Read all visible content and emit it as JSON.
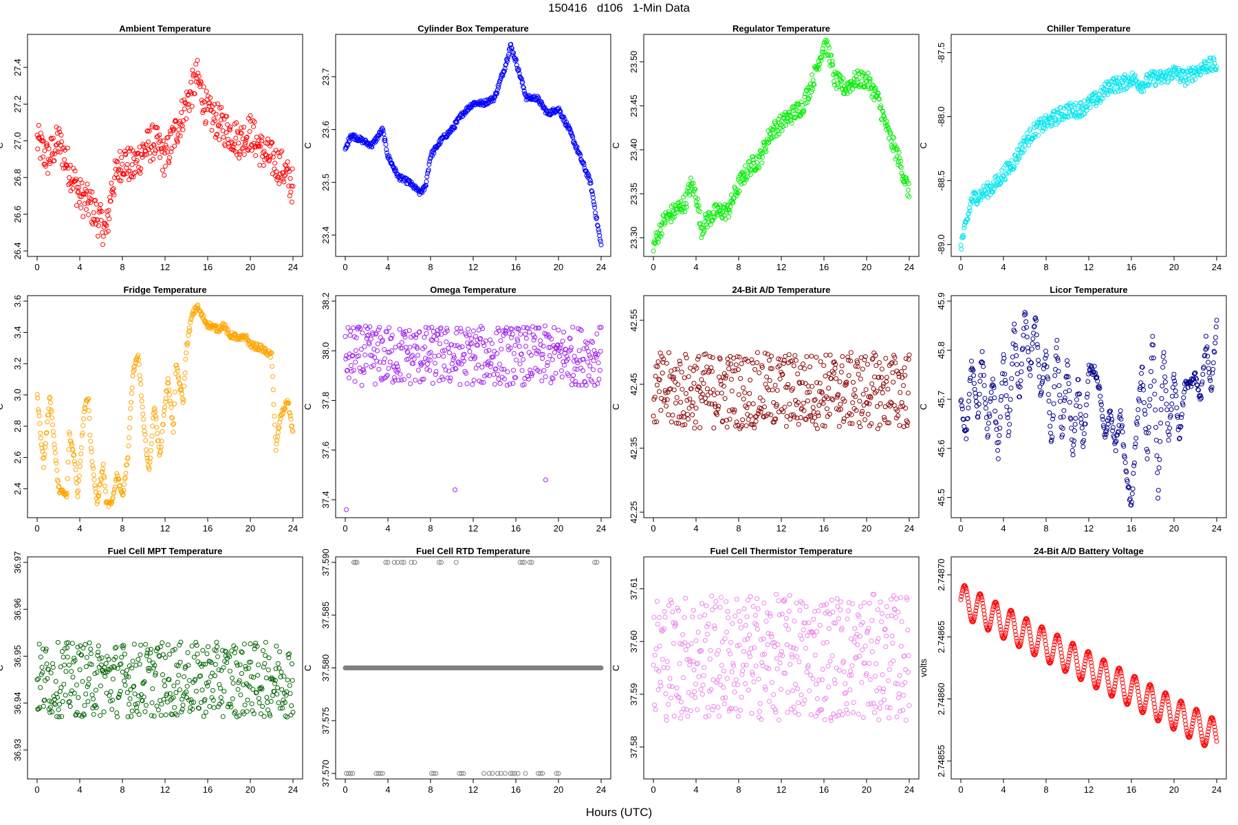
{
  "main_title": "150416   d106   1-Min Data",
  "x_axis_title": "Hours (UTC)",
  "chart_data": [
    {
      "type": "scatter",
      "title": "Ambient Temperature",
      "ylabel": "C",
      "color": "#ff0000",
      "xlim": [
        0,
        24
      ],
      "ylim": [
        26.4,
        27.55
      ],
      "xticks": [
        0,
        4,
        8,
        12,
        16,
        20,
        24
      ],
      "yticks": [
        "26.4",
        "26.6",
        "26.8",
        "27.0",
        "27.2",
        "27.4"
      ],
      "series_profile": {
        "x": [
          0,
          1,
          2,
          3,
          4,
          5,
          6,
          6.5,
          7,
          8,
          9,
          10,
          11,
          12,
          13,
          14,
          15,
          16,
          17,
          18,
          19,
          20,
          21,
          22,
          23,
          24
        ],
        "y": [
          27.0,
          26.9,
          27.0,
          26.85,
          26.7,
          26.65,
          26.55,
          26.5,
          26.75,
          26.9,
          26.85,
          26.95,
          27.0,
          26.9,
          27.05,
          27.2,
          27.35,
          27.15,
          27.1,
          27.05,
          27.0,
          27.05,
          26.95,
          26.9,
          26.85,
          26.75
        ]
      },
      "spread": 0.1
    },
    {
      "type": "scatter",
      "title": "Cylinder Box Temperature",
      "ylabel": "C",
      "color": "#0000ff",
      "xlim": [
        0,
        24
      ],
      "ylim": [
        23.37,
        23.77
      ],
      "xticks": [
        0,
        4,
        8,
        12,
        16,
        20,
        24
      ],
      "yticks": [
        "23.4",
        "23.5",
        "23.6",
        "23.7"
      ],
      "series_profile": {
        "x": [
          0,
          0.5,
          1.5,
          2.5,
          3.5,
          4,
          5,
          6,
          7,
          7.5,
          8,
          9,
          10,
          11,
          12,
          13,
          14,
          15,
          15.5,
          16,
          17,
          18,
          19,
          20,
          21,
          22,
          23,
          24
        ],
        "y": [
          23.56,
          23.59,
          23.58,
          23.57,
          23.6,
          23.55,
          23.51,
          23.5,
          23.48,
          23.49,
          23.55,
          23.58,
          23.6,
          23.63,
          23.65,
          23.65,
          23.66,
          23.72,
          23.76,
          23.73,
          23.66,
          23.66,
          23.63,
          23.64,
          23.6,
          23.55,
          23.5,
          23.38
        ]
      },
      "spread": 0.005
    },
    {
      "type": "scatter",
      "title": "Regulator Temperature",
      "ylabel": "C",
      "color": "#00ee00",
      "xlim": [
        0,
        24
      ],
      "ylim": [
        23.285,
        23.525
      ],
      "xticks": [
        0,
        4,
        8,
        12,
        16,
        20,
        24
      ],
      "yticks": [
        "23.30",
        "23.35",
        "23.40",
        "23.45",
        "23.50"
      ],
      "series_profile": {
        "x": [
          0,
          1,
          2,
          3,
          3.5,
          4,
          4.5,
          5,
          6,
          7,
          8,
          9,
          10,
          11,
          12,
          13,
          14,
          15,
          16,
          16.5,
          17,
          18,
          19,
          20,
          21,
          22,
          23,
          24
        ],
        "y": [
          23.29,
          23.32,
          23.33,
          23.34,
          23.36,
          23.35,
          23.31,
          23.32,
          23.33,
          23.33,
          23.36,
          23.38,
          23.39,
          23.42,
          23.43,
          23.44,
          23.45,
          23.48,
          23.52,
          23.51,
          23.48,
          23.47,
          23.48,
          23.48,
          23.46,
          23.42,
          23.39,
          23.35
        ]
      },
      "spread": 0.01
    },
    {
      "type": "scatter",
      "title": "Chiller Temperature",
      "ylabel": "C",
      "color": "#00e5ee",
      "xlim": [
        0,
        24
      ],
      "ylim": [
        -89.05,
        -87.4
      ],
      "xticks": [
        0,
        4,
        8,
        12,
        16,
        20,
        24
      ],
      "yticks": [
        "-89.0",
        "-88.5",
        "-88.0",
        "-87.5"
      ],
      "series_profile": {
        "x": [
          0,
          0.5,
          1,
          2,
          3,
          4,
          5,
          6,
          7,
          8,
          9,
          10,
          11,
          12,
          13,
          14,
          15,
          16,
          17,
          18,
          19,
          20,
          21,
          22,
          23,
          24
        ],
        "y": [
          -89.0,
          -88.85,
          -88.65,
          -88.6,
          -88.55,
          -88.45,
          -88.35,
          -88.2,
          -88.1,
          -88.05,
          -88.0,
          -87.95,
          -87.95,
          -87.9,
          -87.85,
          -87.75,
          -87.75,
          -87.7,
          -87.75,
          -87.7,
          -87.7,
          -87.65,
          -87.7,
          -87.65,
          -87.6,
          -87.6
        ]
      },
      "spread": 0.06
    },
    {
      "type": "scatter",
      "title": "Fridge Temperature",
      "ylabel": "C",
      "color": "#ffa500",
      "xlim": [
        0,
        24
      ],
      "ylim": [
        2.25,
        3.6
      ],
      "xticks": [
        0,
        4,
        8,
        12,
        16,
        20,
        24
      ],
      "yticks": [
        "2.4",
        "2.6",
        "2.8",
        "3.0",
        "3.2",
        "3.4",
        "3.6"
      ],
      "series_profile": {
        "x": [
          0,
          0.6,
          1.2,
          2,
          2.8,
          3,
          3.5,
          3.8,
          4.4,
          4.8,
          5,
          5.6,
          6.2,
          6.5,
          7,
          7.5,
          8,
          8.5,
          9,
          9.5,
          10,
          10.5,
          11,
          11.5,
          12,
          12.3,
          12.8,
          13,
          13.7,
          14,
          14.5,
          15,
          15.5,
          16,
          17,
          17.5,
          18,
          18.5,
          19,
          19.5,
          20,
          21,
          22,
          22.4,
          22.8,
          23.5,
          24
        ],
        "y": [
          3.0,
          2.55,
          3.0,
          2.4,
          2.35,
          2.75,
          2.6,
          2.35,
          2.9,
          3.0,
          2.7,
          2.3,
          2.55,
          2.3,
          2.3,
          2.5,
          2.35,
          2.6,
          3.15,
          3.25,
          2.8,
          2.5,
          2.95,
          2.6,
          2.95,
          3.1,
          2.75,
          3.2,
          2.95,
          3.3,
          3.5,
          3.57,
          3.5,
          3.45,
          3.42,
          3.45,
          3.38,
          3.38,
          3.35,
          3.38,
          3.32,
          3.3,
          3.25,
          2.65,
          2.85,
          2.97,
          2.75
        ]
      },
      "spread": 0.02
    },
    {
      "type": "scatter",
      "title": "Omega Temperature",
      "ylabel": "C",
      "color": "#a020f0",
      "xlim": [
        0,
        24
      ],
      "ylim": [
        37.35,
        38.2
      ],
      "xticks": [
        0,
        4,
        8,
        12,
        16,
        20,
        24
      ],
      "yticks": [
        "37.4",
        "37.6",
        "37.8",
        "38.0",
        "38.2"
      ],
      "series_profile": {
        "x": [
          0,
          24
        ],
        "y": [
          37.98,
          37.98
        ]
      },
      "spread": 0.12,
      "outliers": [
        [
          0.1,
          37.36
        ],
        [
          10.3,
          37.44
        ],
        [
          18.8,
          37.48
        ]
      ]
    },
    {
      "type": "scatter",
      "title": "24-Bit A/D Temperature",
      "ylabel": "C",
      "color": "#8b0000",
      "xlim": [
        0,
        24
      ],
      "ylim": [
        42.25,
        42.58
      ],
      "xticks": [
        0,
        4,
        8,
        12,
        16,
        20,
        24
      ],
      "yticks": [
        "42.25",
        "42.35",
        "42.45",
        "42.55"
      ],
      "series_profile": {
        "x": [
          0,
          24
        ],
        "y": [
          42.44,
          42.44
        ]
      },
      "spread": 0.06
    },
    {
      "type": "scatter",
      "title": "Licor Temperature",
      "ylabel": "C",
      "color": "#00008b",
      "xlim": [
        0,
        24
      ],
      "ylim": [
        45.47,
        45.9
      ],
      "xticks": [
        0,
        4,
        8,
        12,
        16,
        20,
        24
      ],
      "yticks": [
        "45.5",
        "45.6",
        "45.7",
        "45.8",
        "45.9"
      ],
      "series_profile": {
        "x": [
          0,
          0.5,
          1,
          1.6,
          2,
          2.5,
          3,
          3.5,
          4,
          4.5,
          5,
          5.5,
          6,
          6.5,
          7,
          7.5,
          8,
          8.5,
          9,
          9.5,
          10,
          10.5,
          11,
          11.5,
          12,
          12.5,
          13,
          13.5,
          14,
          14.5,
          15,
          15.5,
          16,
          16.5,
          17,
          17.5,
          18,
          18.5,
          19,
          19.5,
          20,
          20.5,
          21,
          21.5,
          22,
          22.5,
          23,
          23.5,
          24
        ],
        "y": [
          45.7,
          45.62,
          45.78,
          45.66,
          45.8,
          45.62,
          45.75,
          45.58,
          45.8,
          45.62,
          45.85,
          45.7,
          45.88,
          45.75,
          45.88,
          45.7,
          45.8,
          45.6,
          45.82,
          45.62,
          45.78,
          45.58,
          45.74,
          45.6,
          45.76,
          45.76,
          45.72,
          45.62,
          45.68,
          45.6,
          45.67,
          45.55,
          45.48,
          45.65,
          45.77,
          45.58,
          45.84,
          45.5,
          45.8,
          45.62,
          45.75,
          45.62,
          45.73,
          45.73,
          45.75,
          45.7,
          45.82,
          45.72,
          45.86
        ]
      },
      "spread": 0.01
    },
    {
      "type": "scatter",
      "title": "Fuel Cell MPT Temperature",
      "ylabel": "C",
      "color": "#006400",
      "xlim": [
        0,
        24
      ],
      "ylim": [
        36.925,
        36.97
      ],
      "xticks": [
        0,
        4,
        8,
        12,
        16,
        20,
        24
      ],
      "yticks": [
        "36.93",
        "36.94",
        "36.95",
        "36.96",
        "36.97"
      ],
      "series_profile": {
        "x": [
          0,
          24
        ],
        "y": [
          36.945,
          36.945
        ]
      },
      "spread": 0.008
    },
    {
      "type": "scatter",
      "title": "Fuel Cell RTD Temperature",
      "ylabel": "C",
      "color": "#808080",
      "xlim": [
        0,
        24
      ],
      "ylim": [
        37.57,
        37.59
      ],
      "xticks": [
        0,
        4,
        8,
        12,
        16,
        20,
        24
      ],
      "yticks": [
        "37.570",
        "37.575",
        "37.580",
        "37.585",
        "37.590"
      ],
      "series_profile": {
        "x": [
          0,
          24
        ],
        "y": [
          37.58,
          37.58
        ]
      },
      "spread": 0,
      "high_points": [
        0.8,
        0.95,
        1.1,
        3.8,
        4.0,
        4.6,
        4.9,
        5.3,
        5.5,
        6.2,
        6.5,
        8.8,
        9.0,
        10.4,
        16.4,
        16.6,
        16.8,
        17.3,
        17.5,
        23.4,
        23.6
      ],
      "low_points": [
        0.1,
        0.3,
        0.5,
        0.7,
        2.9,
        3.1,
        3.3,
        3.5,
        8.1,
        8.3,
        8.5,
        10.7,
        10.9,
        11.1,
        13.0,
        13.5,
        13.8,
        14.3,
        14.6,
        15.0,
        15.5,
        15.7,
        15.9,
        16.2,
        16.9,
        18.1,
        18.3,
        18.5,
        19.8,
        20.0
      ]
    },
    {
      "type": "scatter",
      "title": "Fuel Cell Thermistor Temperature",
      "ylabel": "C",
      "color": "#ee82ee",
      "xlim": [
        0,
        24
      ],
      "ylim": [
        37.575,
        37.615
      ],
      "xticks": [
        0,
        4,
        8,
        12,
        16,
        20,
        24
      ],
      "yticks": [
        "37.58",
        "37.59",
        "37.60",
        "37.61"
      ],
      "series_profile": {
        "x": [
          0,
          24
        ],
        "y": [
          37.597,
          37.597
        ]
      },
      "spread": 0.012
    },
    {
      "type": "scatter",
      "title": "24-Bit A/D Battery Voltage",
      "ylabel": "volts",
      "color": "#ff0000",
      "xlim": [
        0,
        24
      ],
      "ylim": [
        2.74854,
        2.74871
      ],
      "xticks": [
        0,
        4,
        8,
        12,
        16,
        20,
        24
      ],
      "yticks": [
        "2.74855",
        "2.74860",
        "2.74865",
        "2.74870"
      ],
      "series_profile": {
        "x": [
          0,
          24
        ],
        "y": [
          2.74868,
          2.74857
        ]
      },
      "spread": 0,
      "wave": {
        "amplitude": 1.3e-05,
        "period": 1.45
      }
    }
  ]
}
